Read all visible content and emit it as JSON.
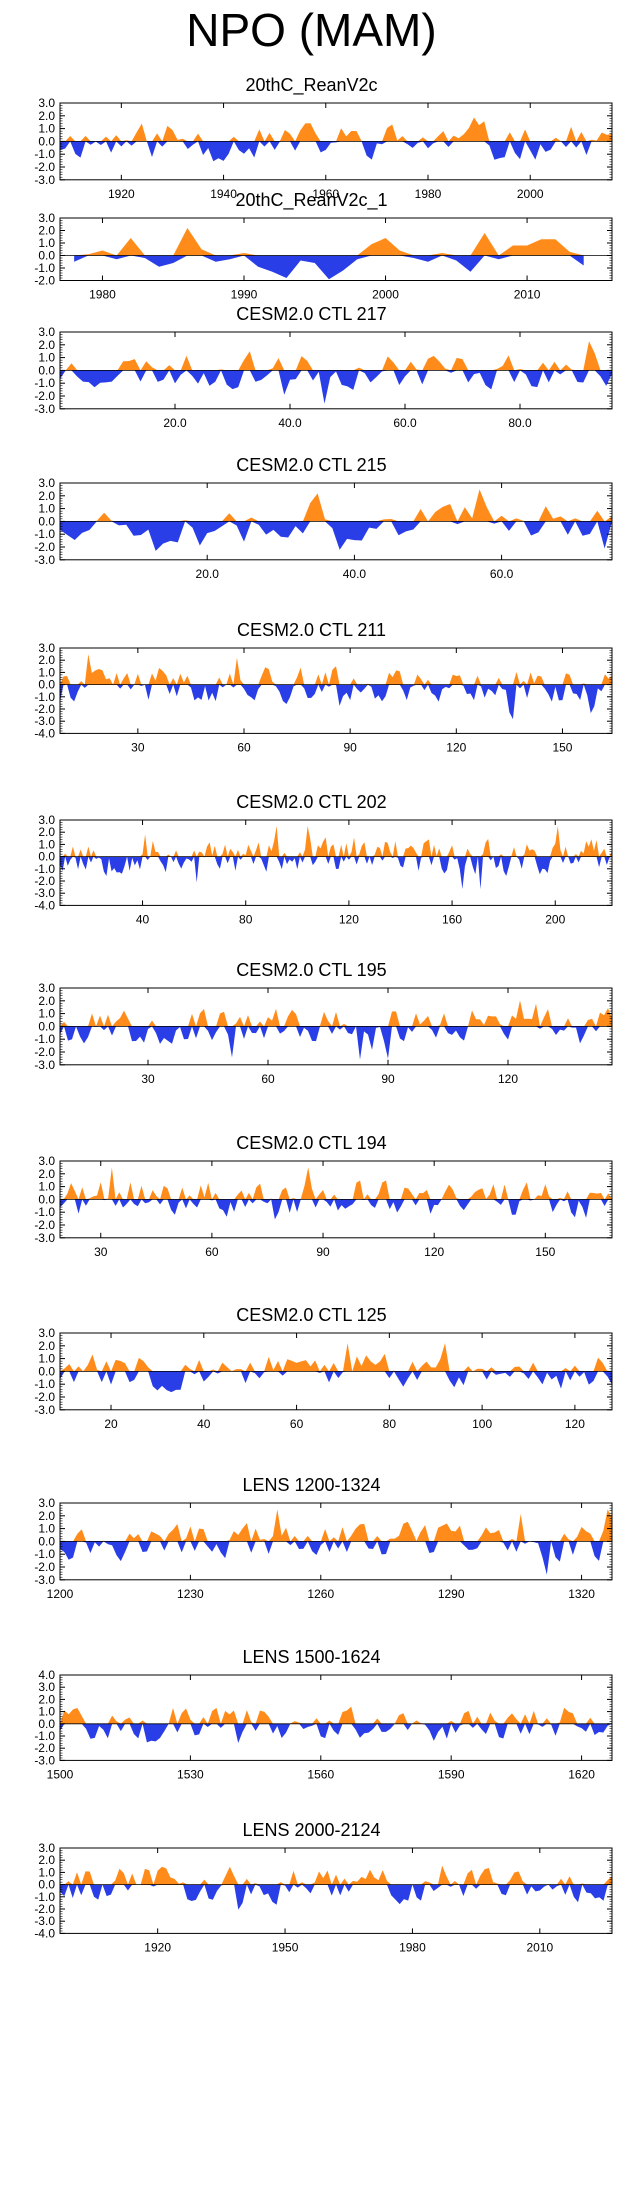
{
  "title": "NPO (MAM)",
  "colors": {
    "positive": "#ff8c1a",
    "negative": "#2a3ee8",
    "axis": "#000000"
  },
  "chart_data": [
    {
      "type": "area",
      "title": "20thC_ReanV2c",
      "xlim": [
        1908,
        2016
      ],
      "ylim": [
        -3,
        3
      ],
      "yticks": [
        3,
        2,
        1,
        0,
        -1,
        -2,
        -3
      ],
      "ytick_labels": [
        "3.0",
        "2.0",
        "1.0",
        "0.0",
        "-1.0",
        "-2.0",
        "-3.0"
      ],
      "xticks": [
        1920,
        1940,
        1960,
        1980,
        2000
      ],
      "xtick_labels": [
        "1920",
        "1940",
        "1960",
        "1980",
        "2000"
      ],
      "series_seed": 11
    },
    {
      "type": "area",
      "title": "20thC_ReanV2c_1",
      "xlim": [
        1977,
        2016
      ],
      "ylim": [
        -2,
        3
      ],
      "yticks": [
        3,
        2,
        1,
        0,
        -1,
        -2
      ],
      "ytick_labels": [
        "3.0",
        "2.0",
        "1.0",
        "0.0",
        "-1.0",
        "-2.0"
      ],
      "xticks": [
        1980,
        1990,
        2000,
        2010
      ],
      "xtick_labels": [
        "1980",
        "1990",
        "2000",
        "2010"
      ],
      "x": [
        1978,
        1979,
        1980,
        1981,
        1982,
        1983,
        1984,
        1985,
        1986,
        1987,
        1988,
        1989,
        1990,
        1991,
        1992,
        1993,
        1994,
        1995,
        1996,
        1997,
        1998,
        1999,
        2000,
        2001,
        2002,
        2003,
        2004,
        2005,
        2006,
        2007,
        2008,
        2009,
        2010,
        2011,
        2012,
        2013,
        2014
      ],
      "values": [
        -0.5,
        0.1,
        0.4,
        -0.3,
        1.4,
        -0.2,
        -0.9,
        -0.6,
        2.2,
        0.5,
        -0.5,
        -0.3,
        0.2,
        -0.9,
        -1.3,
        -1.8,
        -0.4,
        -0.6,
        -1.9,
        -1.2,
        -0.3,
        0.9,
        1.4,
        0.4,
        -0.2,
        -0.5,
        0.2,
        -0.4,
        -1.3,
        1.8,
        -0.3,
        0.8,
        0.8,
        1.3,
        1.3,
        0.3,
        -0.8
      ]
    },
    {
      "type": "area",
      "title": "CESM2.0 CTL 217",
      "xlim": [
        0,
        96
      ],
      "ylim": [
        -3,
        3
      ],
      "yticks": [
        3,
        2,
        1,
        0,
        -1,
        -2,
        -3
      ],
      "ytick_labels": [
        "3.0",
        "2.0",
        "1.0",
        "0.0",
        "-1.0",
        "-2.0",
        "-3.0"
      ],
      "xticks": [
        20,
        40,
        60,
        80
      ],
      "xtick_labels": [
        "20.0",
        "40.0",
        "60.0",
        "80.0"
      ],
      "series_seed": 23
    },
    {
      "type": "area",
      "title": "CESM2.0 CTL 215",
      "xlim": [
        0,
        75
      ],
      "ylim": [
        -3,
        3
      ],
      "yticks": [
        3,
        2,
        1,
        0,
        -1,
        -2,
        -3
      ],
      "ytick_labels": [
        "3.0",
        "2.0",
        "1.0",
        "0.0",
        "-1.0",
        "-2.0",
        "-3.0"
      ],
      "xticks": [
        20,
        40,
        60
      ],
      "xtick_labels": [
        "20.0",
        "40.0",
        "60.0"
      ],
      "series_seed": 37
    },
    {
      "type": "area",
      "title": "CESM2.0 CTL 211",
      "xlim": [
        8,
        164
      ],
      "ylim": [
        -4,
        3
      ],
      "yticks": [
        3,
        2,
        1,
        0,
        -1,
        -2,
        -3,
        -4
      ],
      "ytick_labels": [
        "3.0",
        "2.0",
        "1.0",
        "0.0",
        "-1.0",
        "-2.0",
        "-3.0",
        "-4.0"
      ],
      "xticks": [
        30,
        60,
        90,
        120,
        150
      ],
      "xtick_labels": [
        "30",
        "60",
        "90",
        "120",
        "150"
      ],
      "series_seed": 41
    },
    {
      "type": "area",
      "title": "CESM2.0 CTL 202",
      "xlim": [
        8,
        222
      ],
      "ylim": [
        -4,
        3
      ],
      "yticks": [
        3,
        2,
        1,
        0,
        -1,
        -2,
        -3,
        -4
      ],
      "ytick_labels": [
        "3.0",
        "2.0",
        "1.0",
        "0.0",
        "-1.0",
        "-2.0",
        "-3.0",
        "-4.0"
      ],
      "xticks": [
        40,
        80,
        120,
        160,
        200
      ],
      "xtick_labels": [
        "40",
        "80",
        "120",
        "160",
        "200"
      ],
      "series_seed": 53
    },
    {
      "type": "area",
      "title": "CESM2.0 CTL 195",
      "xlim": [
        8,
        146
      ],
      "ylim": [
        -3,
        3
      ],
      "yticks": [
        3,
        2,
        1,
        0,
        -1,
        -2,
        -3
      ],
      "ytick_labels": [
        "3.0",
        "2.0",
        "1.0",
        "0.0",
        "-1.0",
        "-2.0",
        "-3.0"
      ],
      "xticks": [
        30,
        60,
        90,
        120
      ],
      "xtick_labels": [
        "30",
        "60",
        "90",
        "120"
      ],
      "series_seed": 67
    },
    {
      "type": "area",
      "title": "CESM2.0 CTL 194",
      "xlim": [
        19,
        168
      ],
      "ylim": [
        -3,
        3
      ],
      "yticks": [
        3,
        2,
        1,
        0,
        -1,
        -2,
        -3
      ],
      "ytick_labels": [
        "3.0",
        "2.0",
        "1.0",
        "0.0",
        "-1.0",
        "-2.0",
        "-3.0"
      ],
      "xticks": [
        30,
        60,
        90,
        120,
        150
      ],
      "xtick_labels": [
        "30",
        "60",
        "90",
        "120",
        "150"
      ],
      "series_seed": 71
    },
    {
      "type": "area",
      "title": "CESM2.0 CTL 125",
      "xlim": [
        9,
        128
      ],
      "ylim": [
        -3,
        3
      ],
      "yticks": [
        3,
        2,
        1,
        0,
        -1,
        -2,
        -3
      ],
      "ytick_labels": [
        "3.0",
        "2.0",
        "1.0",
        "0.0",
        "-1.0",
        "-2.0",
        "-3.0"
      ],
      "xticks": [
        20,
        40,
        60,
        80,
        100,
        120
      ],
      "xtick_labels": [
        "20",
        "40",
        "60",
        "80",
        "100",
        "120"
      ],
      "series_seed": 83
    },
    {
      "type": "area",
      "title": "LENS 1200-1324",
      "xlim": [
        1200,
        1327
      ],
      "ylim": [
        -3,
        3
      ],
      "yticks": [
        3,
        2,
        1,
        0,
        -1,
        -2,
        -3
      ],
      "ytick_labels": [
        "3.0",
        "2.0",
        "1.0",
        "0.0",
        "-1.0",
        "-2.0",
        "-3.0"
      ],
      "xticks": [
        1200,
        1230,
        1260,
        1290,
        1320
      ],
      "xtick_labels": [
        "1200",
        "1230",
        "1260",
        "1290",
        "1320"
      ],
      "series_seed": 97
    },
    {
      "type": "area",
      "title": "LENS 1500-1624",
      "xlim": [
        1500,
        1627
      ],
      "ylim": [
        -3,
        4
      ],
      "yticks": [
        4,
        3,
        2,
        1,
        0,
        -1,
        -2,
        -3
      ],
      "ytick_labels": [
        "4.0",
        "3.0",
        "2.0",
        "1.0",
        "0.0",
        "-1.0",
        "-2.0",
        "-3.0"
      ],
      "xticks": [
        1500,
        1530,
        1560,
        1590,
        1620
      ],
      "xtick_labels": [
        "1500",
        "1530",
        "1560",
        "1590",
        "1620"
      ],
      "series_seed": 101
    },
    {
      "type": "area",
      "title": "LENS 2000-2124",
      "xlim": [
        1897,
        2027
      ],
      "ylim": [
        -4,
        3
      ],
      "yticks": [
        3,
        2,
        1,
        0,
        -1,
        -2,
        -3,
        -4
      ],
      "ytick_labels": [
        "3.0",
        "2.0",
        "1.0",
        "0.0",
        "-1.0",
        "-2.0",
        "-3.0",
        "-4.0"
      ],
      "xticks": [
        1920,
        1950,
        1980,
        2010
      ],
      "xtick_labels": [
        "1920",
        "1950",
        "1980",
        "2010"
      ],
      "series_seed": 113
    }
  ]
}
